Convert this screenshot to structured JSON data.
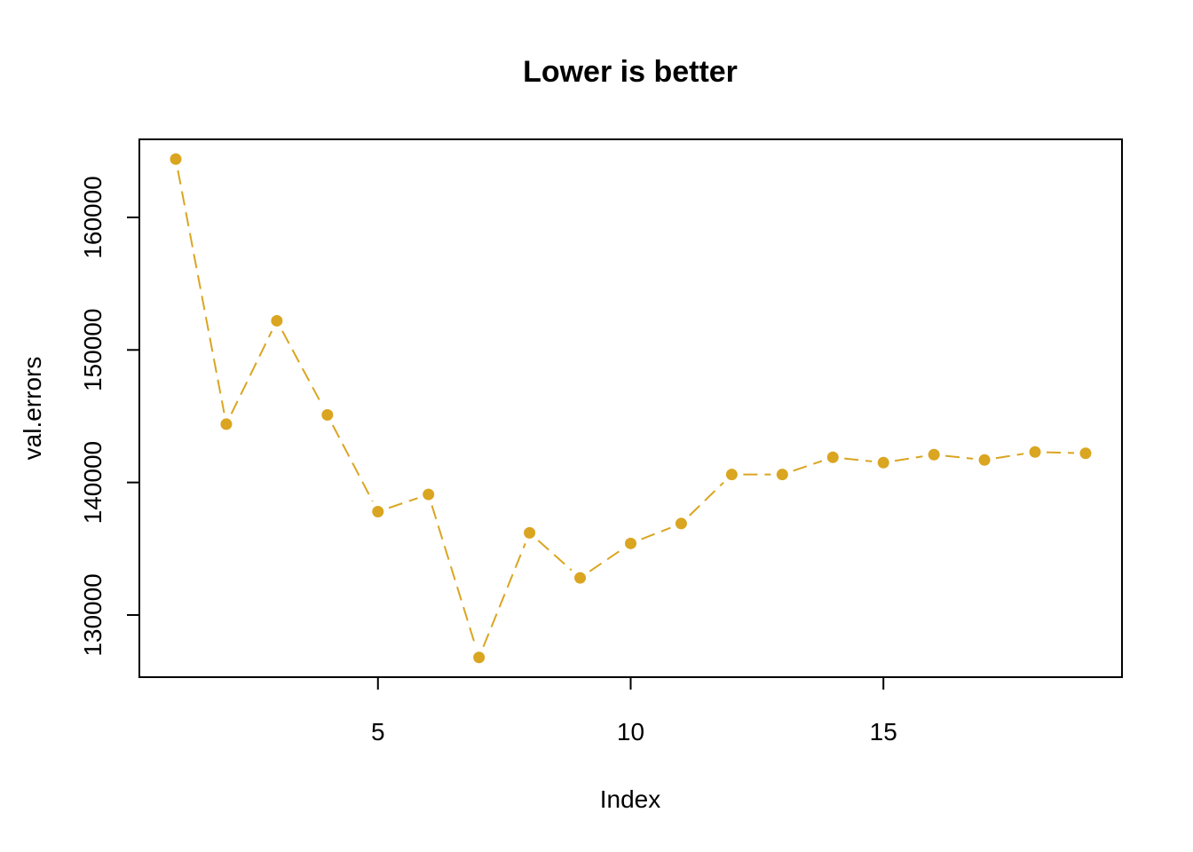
{
  "chart_data": {
    "type": "line",
    "title": "Lower is better",
    "xlabel": "Index",
    "ylabel": "val.errors",
    "x": [
      1,
      2,
      3,
      4,
      5,
      6,
      7,
      8,
      9,
      10,
      11,
      12,
      13,
      14,
      15,
      16,
      17,
      18,
      19
    ],
    "values": [
      164400,
      144400,
      152200,
      145100,
      137800,
      139100,
      126800,
      136200,
      132800,
      135400,
      136900,
      140600,
      140600,
      141900,
      141500,
      142100,
      141700,
      142300,
      142200
    ],
    "xlim": [
      0.28,
      19.72
    ],
    "ylim": [
      125310,
      165890
    ],
    "xticks": [
      5,
      10,
      15
    ],
    "xtick_labels": [
      "5",
      "10",
      "15"
    ],
    "yticks": [
      130000,
      140000,
      150000,
      160000
    ],
    "ytick_labels": [
      "130000",
      "140000",
      "150000",
      "160000"
    ],
    "grid": false,
    "line_style": "dashed",
    "color": "#DAA520"
  }
}
